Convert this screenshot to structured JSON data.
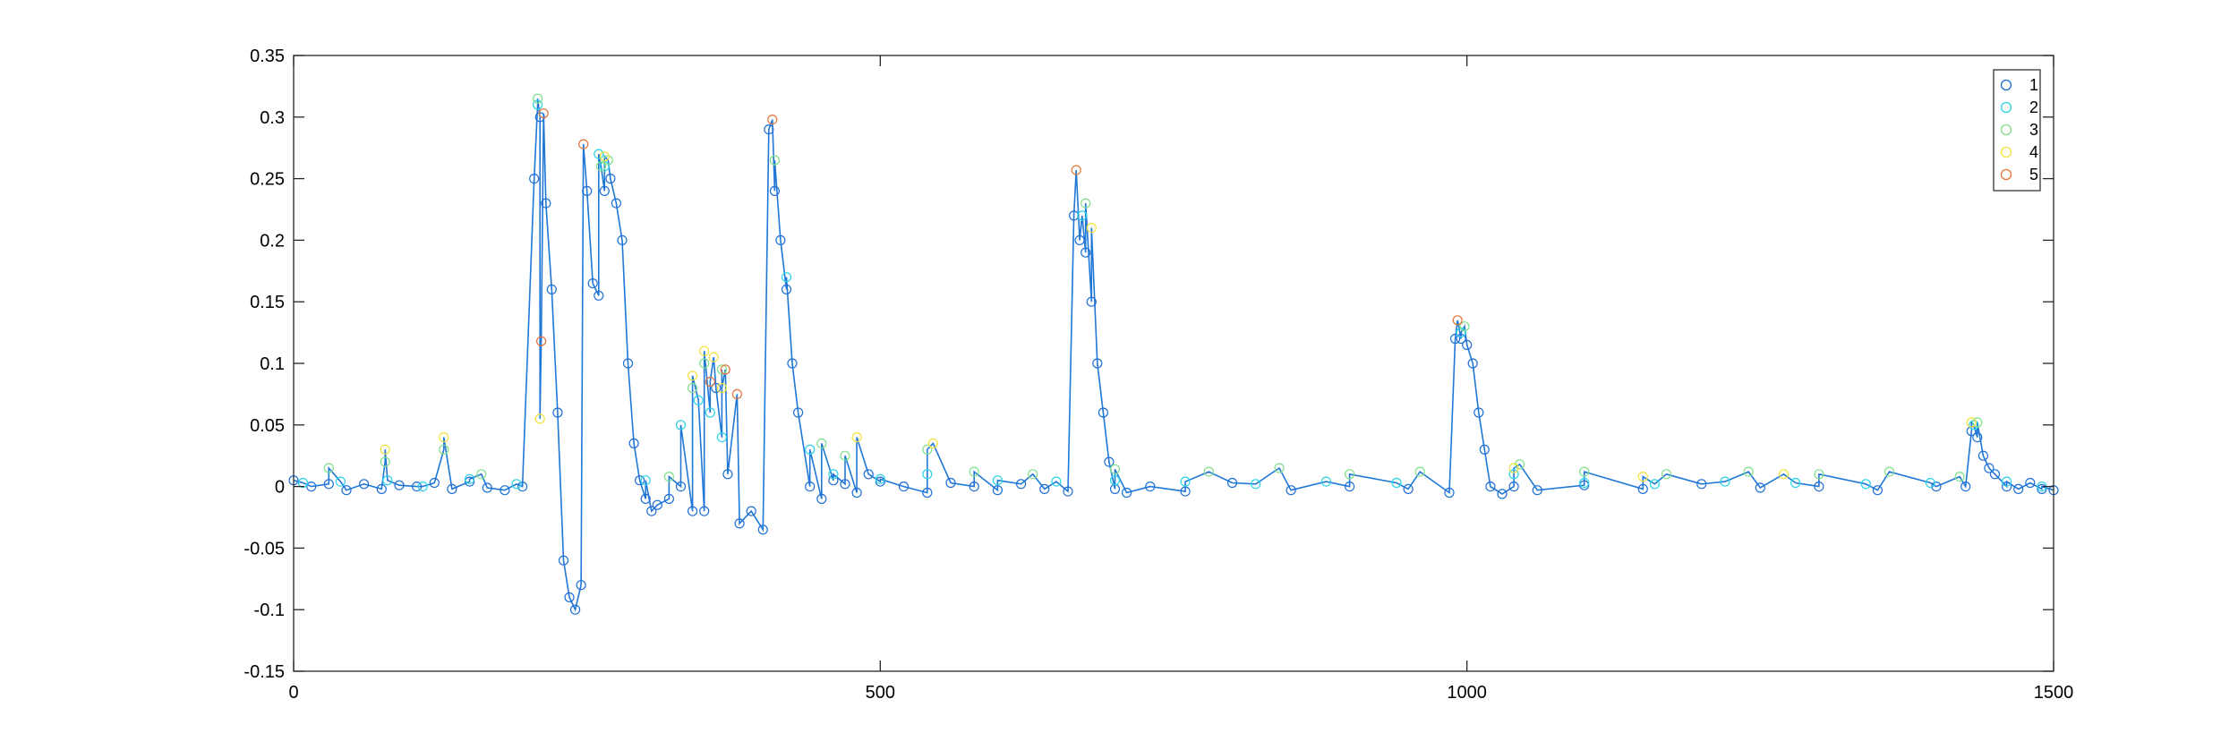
{
  "chart_data": {
    "type": "scatter",
    "title": "",
    "xlabel": "",
    "ylabel": "",
    "xlim": [
      0,
      1500
    ],
    "ylim": [
      -0.15,
      0.35
    ],
    "xticks": [
      0,
      500,
      1000,
      1500
    ],
    "xtick_labels": [
      "0",
      "500",
      "1000",
      "1500"
    ],
    "yticks": [
      -0.15,
      -0.1,
      -0.05,
      0,
      0.05,
      0.1,
      0.15,
      0.2,
      0.25,
      0.3,
      0.35
    ],
    "ytick_labels": [
      "-0.15",
      "-0.1",
      "-0.05",
      "0",
      "0.05",
      "0.1",
      "0.15",
      "0.2",
      "0.25",
      "0.3",
      "0.35"
    ],
    "grid": false,
    "box": true,
    "marker": "open-circle",
    "legend": {
      "placement": "top-right",
      "entries": [
        {
          "label": "1",
          "color": "#1f6fd6"
        },
        {
          "label": "2",
          "color": "#2ad4e6"
        },
        {
          "label": "3",
          "color": "#7fe08a"
        },
        {
          "label": "4",
          "color": "#f2e23a"
        },
        {
          "label": "5",
          "color": "#e3743a"
        }
      ]
    },
    "line_color": "#1f77d6",
    "series": [
      {
        "name": "1",
        "color": "#1f6fd6",
        "x": [
          0,
          15,
          30,
          45,
          60,
          75,
          90,
          105,
          120,
          135,
          150,
          165,
          180,
          195,
          205,
          210,
          215,
          220,
          225,
          230,
          235,
          240,
          245,
          250,
          255,
          260,
          265,
          270,
          275,
          280,
          285,
          290,
          295,
          300,
          305,
          310,
          320,
          330,
          340,
          350,
          360,
          370,
          380,
          390,
          400,
          405,
          410,
          415,
          420,
          425,
          430,
          440,
          450,
          460,
          470,
          480,
          490,
          500,
          520,
          540,
          560,
          580,
          600,
          620,
          640,
          660,
          665,
          670,
          675,
          680,
          685,
          690,
          695,
          700,
          710,
          730,
          760,
          800,
          850,
          900,
          950,
          985,
          990,
          995,
          1000,
          1005,
          1010,
          1015,
          1020,
          1030,
          1040,
          1060,
          1100,
          1150,
          1200,
          1250,
          1300,
          1350,
          1400,
          1425,
          1430,
          1435,
          1440,
          1445,
          1450,
          1460,
          1470,
          1480,
          1490,
          1500
        ],
        "y": [
          0.005,
          0.0,
          0.002,
          -0.003,
          0.002,
          -0.002,
          0.001,
          0.0,
          0.003,
          -0.002,
          0.004,
          -0.001,
          -0.003,
          0.0,
          0.25,
          0.3,
          0.23,
          0.16,
          0.06,
          -0.06,
          -0.09,
          -0.1,
          -0.08,
          0.24,
          0.165,
          0.155,
          0.24,
          0.25,
          0.23,
          0.2,
          0.1,
          0.035,
          0.005,
          -0.01,
          -0.02,
          -0.015,
          -0.01,
          0.0,
          -0.02,
          -0.02,
          0.08,
          0.01,
          -0.03,
          -0.02,
          -0.035,
          0.29,
          0.24,
          0.2,
          0.16,
          0.1,
          0.06,
          0.0,
          -0.01,
          0.005,
          0.002,
          -0.005,
          0.01,
          0.004,
          0.0,
          -0.005,
          0.003,
          0.0,
          -0.003,
          0.002,
          -0.002,
          -0.004,
          0.22,
          0.2,
          0.19,
          0.15,
          0.1,
          0.06,
          0.02,
          -0.002,
          -0.005,
          0.0,
          -0.004,
          0.003,
          -0.003,
          0.0,
          -0.002,
          -0.005,
          0.12,
          0.12,
          0.115,
          0.1,
          0.06,
          0.03,
          0.0,
          -0.006,
          0.0,
          -0.003,
          0.001,
          -0.002,
          0.002,
          -0.001,
          0.0,
          -0.003,
          0.0,
          0.0,
          0.045,
          0.04,
          0.025,
          0.015,
          0.01,
          0.0,
          -0.002,
          0.003,
          -0.002,
          -0.003
        ]
      },
      {
        "name": "2",
        "color": "#2ad4e6",
        "x": [
          8,
          40,
          80,
          110,
          150,
          190,
          208,
          260,
          265,
          300,
          330,
          345,
          355,
          365,
          420,
          440,
          460,
          500,
          540,
          600,
          650,
          672,
          700,
          760,
          820,
          880,
          940,
          995,
          1040,
          1100,
          1160,
          1220,
          1280,
          1340,
          1395,
          1432,
          1460,
          1490
        ],
        "y": [
          0.003,
          0.004,
          0.005,
          0.0,
          0.006,
          0.002,
          0.31,
          0.27,
          0.26,
          0.005,
          0.05,
          0.07,
          0.06,
          0.04,
          0.17,
          0.03,
          0.01,
          0.006,
          0.01,
          0.005,
          0.004,
          0.22,
          0.005,
          0.004,
          0.002,
          0.004,
          0.003,
          0.125,
          0.01,
          0.003,
          0.002,
          0.004,
          0.003,
          0.002,
          0.003,
          0.05,
          0.004,
          0.0
        ]
      },
      {
        "name": "3",
        "color": "#7fe08a",
        "x": [
          30,
          78,
          128,
          160,
          208,
          262,
          268,
          320,
          340,
          350,
          365,
          410,
          450,
          470,
          540,
          580,
          630,
          675,
          700,
          780,
          840,
          900,
          960,
          998,
          1045,
          1100,
          1170,
          1240,
          1300,
          1360,
          1420,
          1435
        ],
        "y": [
          0.015,
          0.02,
          0.03,
          0.01,
          0.315,
          0.26,
          0.265,
          0.008,
          0.08,
          0.1,
          0.095,
          0.265,
          0.035,
          0.025,
          0.03,
          0.012,
          0.01,
          0.23,
          0.014,
          0.012,
          0.015,
          0.01,
          0.012,
          0.13,
          0.018,
          0.012,
          0.01,
          0.012,
          0.01,
          0.012,
          0.008,
          0.052
        ]
      },
      {
        "name": "4",
        "color": "#f2e23a",
        "x": [
          78,
          128,
          210,
          265,
          340,
          350,
          358,
          365,
          480,
          545,
          680,
          1040,
          1150,
          1270,
          1430
        ],
        "y": [
          0.03,
          0.04,
          0.055,
          0.268,
          0.09,
          0.11,
          0.105,
          0.08,
          0.04,
          0.035,
          0.21,
          0.015,
          0.008,
          0.01,
          0.052
        ]
      },
      {
        "name": "5",
        "color": "#e3743a",
        "x": [
          211,
          213,
          247,
          355,
          368,
          378,
          408,
          667,
          992
        ],
        "y": [
          0.118,
          0.303,
          0.278,
          0.085,
          0.095,
          0.075,
          0.298,
          0.257,
          0.135
        ]
      }
    ]
  }
}
